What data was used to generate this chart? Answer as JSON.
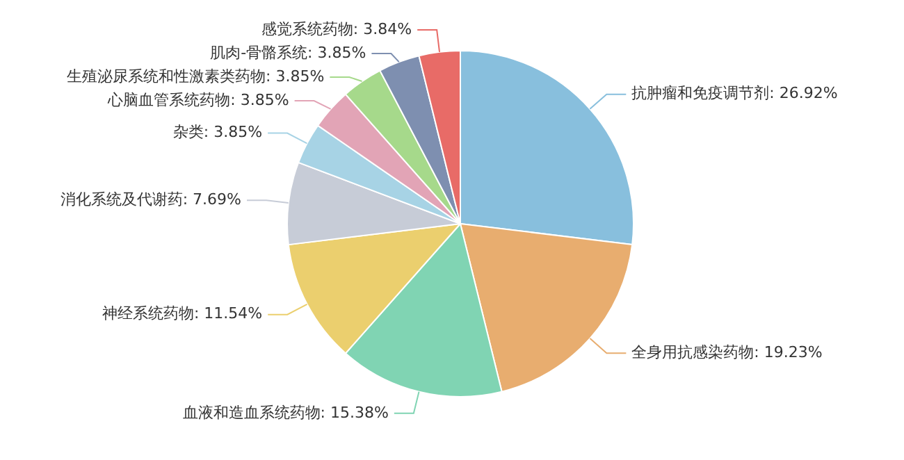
{
  "chart_data": {
    "type": "pie",
    "categories": [
      "抗肿瘤和免疫调节剂",
      "全身用抗感染药物",
      "血液和造血系统药物",
      "神经系统药物",
      "消化系统及代谢药",
      "杂类",
      "心脑血管系统药物",
      "生殖泌尿系统和性激素类药物",
      "肌肉-骨骼系统",
      "感觉系统药物"
    ],
    "values": [
      26.92,
      19.23,
      15.38,
      11.54,
      7.69,
      3.85,
      3.85,
      3.85,
      3.85,
      3.84
    ],
    "value_labels": [
      "26.92%",
      "19.23%",
      "15.38%",
      "11.54%",
      "7.69%",
      "3.85%",
      "3.85%",
      "3.85%",
      "3.85%",
      "3.84%"
    ],
    "colors": [
      "#88bfdd",
      "#e8ad6f",
      "#80d4b3",
      "#ebcf6e",
      "#c7ccd7",
      "#a7d3e5",
      "#e2a4b6",
      "#a6d98b",
      "#7e8fb0",
      "#e86b67"
    ],
    "legend": false
  }
}
